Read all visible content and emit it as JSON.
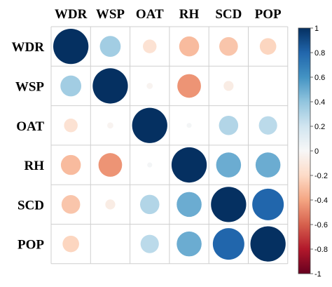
{
  "chart_data": {
    "type": "heatmap",
    "title": "",
    "variables": [
      "WDR",
      "WSP",
      "OAT",
      "RH",
      "SCD",
      "POP"
    ],
    "matrix": [
      [
        1.0,
        0.35,
        -0.15,
        -0.32,
        -0.28,
        -0.22
      ],
      [
        0.35,
        1.0,
        -0.03,
        -0.45,
        -0.08,
        0.0
      ],
      [
        -0.15,
        -0.03,
        1.0,
        0.02,
        0.3,
        0.27
      ],
      [
        -0.32,
        -0.45,
        0.02,
        1.0,
        0.5,
        0.5
      ],
      [
        -0.28,
        -0.08,
        0.3,
        0.5,
        1.0,
        0.8
      ],
      [
        -0.22,
        0.0,
        0.27,
        0.5,
        0.8,
        1.0
      ]
    ],
    "colorbar": {
      "range": [
        -1,
        1
      ],
      "ticks": [
        "1",
        "0.8",
        "0.6",
        "0.4",
        "0.2",
        "0",
        "-0.2",
        "-0.4",
        "-0.6",
        "-0.8",
        "-1"
      ],
      "colors": [
        "#053061",
        "#2166ac",
        "#4393c3",
        "#92c5de",
        "#d1e5f0",
        "#f7f7f7",
        "#fddbc7",
        "#f4a582",
        "#d6604d",
        "#b2182b",
        "#67001f"
      ]
    },
    "grid": true,
    "legend_position": "right",
    "marker": "circle"
  }
}
